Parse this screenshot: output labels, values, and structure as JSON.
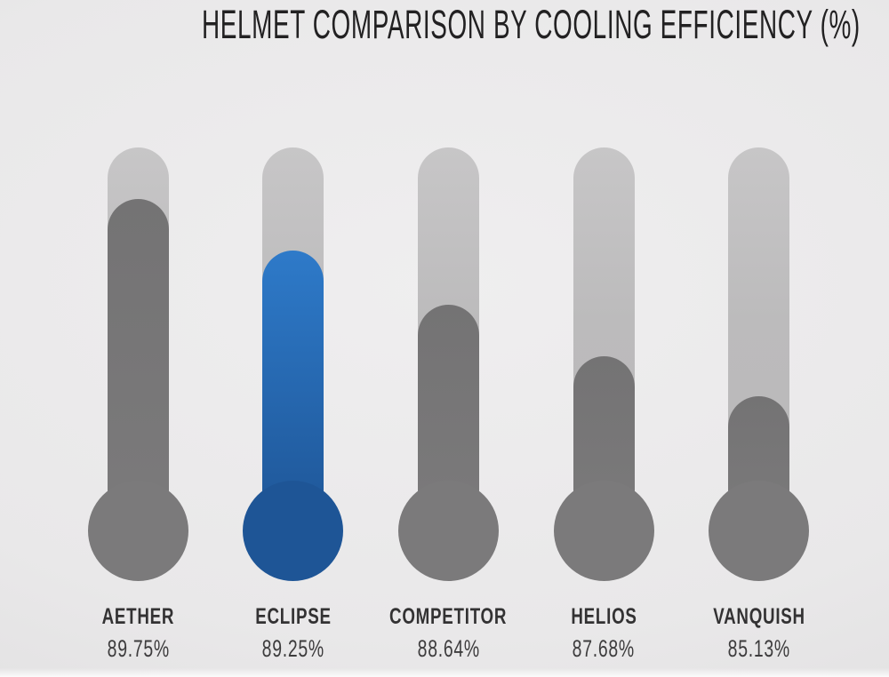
{
  "title": "HELMET COMPARISON BY COOLING EFFICIENCY (%)",
  "chart_data": {
    "type": "bar",
    "variant": "thermometer-infographic",
    "title": "HELMET COMPARISON BY COOLING EFFICIENCY (%)",
    "categories": [
      "AETHER",
      "ECLIPSE",
      "COMPETITOR",
      "HELIOS",
      "VANQUISH"
    ],
    "values": [
      89.75,
      89.25,
      88.64,
      87.68,
      85.13
    ],
    "xlabel": "",
    "ylabel": "Cooling efficiency (%)",
    "legend": "none",
    "grid": false,
    "items": [
      {
        "label": "AETHER",
        "value": 89.75,
        "value_label": "89.75%",
        "highlighted": false,
        "fill_fraction": 0.866
      },
      {
        "label": "ECLIPSE",
        "value": 89.25,
        "value_label": "89.25%",
        "highlighted": true,
        "fill_fraction": 0.731
      },
      {
        "label": "COMPETITOR",
        "value": 88.64,
        "value_label": "88.64%",
        "highlighted": false,
        "fill_fraction": 0.59
      },
      {
        "label": "HELIOS",
        "value": 87.68,
        "value_label": "87.68%",
        "highlighted": false,
        "fill_fraction": 0.456
      },
      {
        "label": "VANQUISH",
        "value": 85.13,
        "value_label": "85.13%",
        "highlighted": false,
        "fill_fraction": 0.352
      }
    ]
  },
  "colors": {
    "highlight_fill_top": "#2e7ac9",
    "highlight_fill_bottom": "#1e5596",
    "default_fill_top": "#747374",
    "default_fill_bottom": "#7b7a7b",
    "tube_background": "#bdbcbd",
    "page_background": "#e9e8e9",
    "title_text": "#222122",
    "label_text": "#333233"
  }
}
